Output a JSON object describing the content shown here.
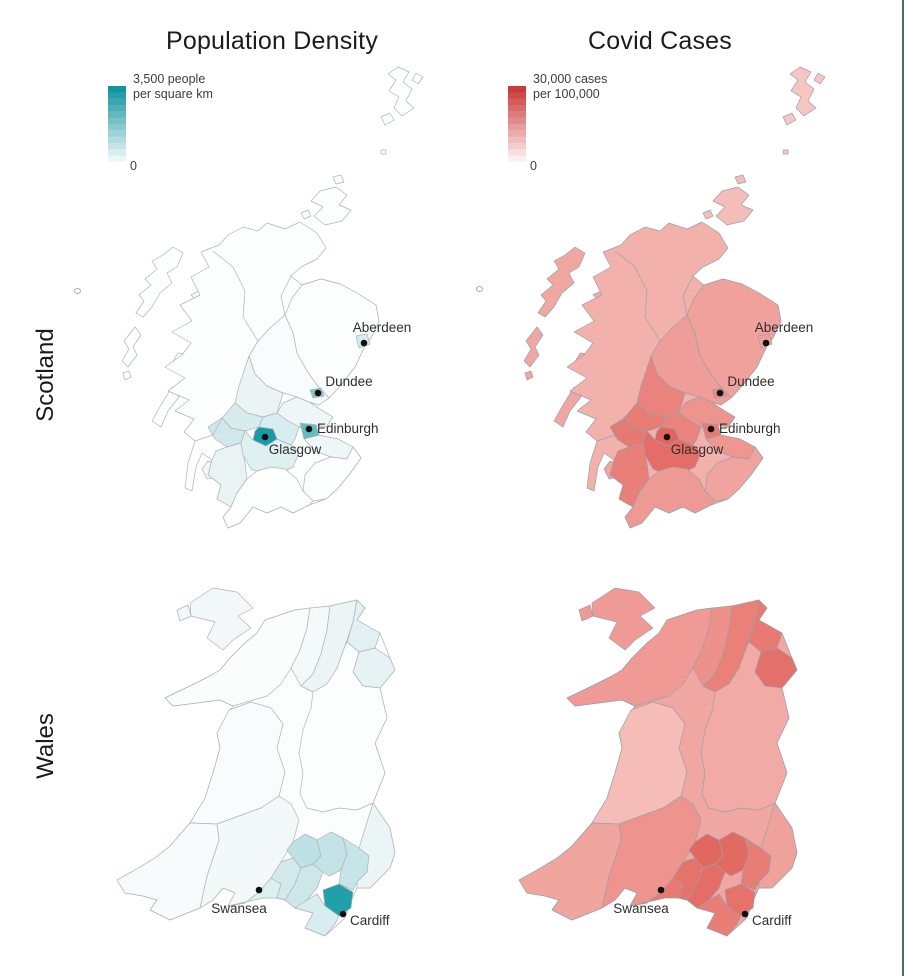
{
  "page": {
    "background": "#ffffff",
    "right_border_color": "#4b7155"
  },
  "columns": [
    {
      "id": "population_density",
      "title": "Population Density",
      "legend": {
        "max_line1": "3,500 people",
        "max_line2": "per square km",
        "min_label": "0",
        "high_color": "#14949e",
        "low_color": "#ffffff"
      }
    },
    {
      "id": "covid_cases",
      "title": "Covid Cases",
      "legend": {
        "max_line1": "30,000 cases",
        "max_line2": "per 100,000",
        "min_label": "0",
        "high_color": "#cb3a3a",
        "low_color": "#ffffff"
      }
    }
  ],
  "rows": [
    {
      "label": "Scotland"
    },
    {
      "label": "Wales"
    }
  ],
  "cities": {
    "scotland": [
      {
        "name": "Aberdeen"
      },
      {
        "name": "Dundee"
      },
      {
        "name": "Edinburgh"
      },
      {
        "name": "Glasgow"
      }
    ],
    "wales": [
      {
        "name": "Swansea"
      },
      {
        "name": "Cardiff"
      }
    ]
  },
  "map_style": {
    "border_color_density": "#aeb3b7",
    "border_color_covid": "#9aa0a8",
    "dot_color": "#101010",
    "label_color": "#2e2e2e"
  },
  "fills": {
    "population_density": {
      "scotland": {
        "base": "#fdfefe",
        "shetland": "#fdfefe",
        "orkney": "#fdfefe",
        "hebrides": "#fdfefe",
        "skye": "#fdfefe",
        "mull": "#fdfefe",
        "islay": "#fdfefe",
        "arran": "#f2f8f9",
        "grampian": "#fcfefe",
        "tayside": "#f9fcfc",
        "fife": "#eef6f7",
        "stirling_west": "#eaf4f5",
        "glasgow_belt_nw": "#d8ecee",
        "renfrew": "#cfe8eb",
        "ayrshire": "#e9f3f4",
        "lanark": "#dff0f1",
        "lothian_west": "#d8edef",
        "lothian_east": "#eef6f7",
        "borders": "#fdfefe",
        "dumfries": "#fdfefe",
        "aberdeen_city": "#d6ecef",
        "dundee_city": "#7fc7cd",
        "edinburgh_city": "#62bcc4",
        "glasgow_city": "#189ba4"
      },
      "wales": {
        "base": "#fcfefe",
        "anglesey": "#f2f8f9",
        "gwynedd": "#fbfdfd",
        "conwy": "#f4fafa",
        "denbighshire": "#ecf5f6",
        "flintshire": "#e1f0f2",
        "wrexham": "#e6f2f4",
        "powys": "#fcfefe",
        "ceredigion": "#f9fcfc",
        "pembrokeshire": "#f7fbfb",
        "carmarthenshire": "#f3f9f9",
        "swansea": "#dceff1",
        "neath": "#d2eaec",
        "bridgend": "#cbe7ea",
        "rhondda": "#bee1e5",
        "merthyr_caerphilly": "#c3e3e7",
        "cardiff": "#22a0a9",
        "vale": "#d8edef",
        "newport": "#c6e5e8",
        "monmouthshire": "#ebf5f6"
      }
    },
    "covid_cases": {
      "scotland": {
        "base": "#f3b1ac",
        "shetland": "#f7c6c2",
        "orkney": "#f5bdb9",
        "hebrides": "#f0a7a2",
        "skye": "#f2aba6",
        "mull": "#f0a7a2",
        "islay": "#f0a7a2",
        "arran": "#f0a5a0",
        "grampian": "#f0a19c",
        "tayside": "#ef9d98",
        "fife": "#ee948e",
        "stirling_west": "#ea837d",
        "glasgow_belt_nw": "#e87d76",
        "renfrew": "#e67972",
        "ayrshire": "#e97f79",
        "lanark": "#e46e67",
        "lothian_west": "#ea837d",
        "lothian_east": "#ee968f",
        "borders": "#f0a49f",
        "dumfries": "#ee9a94",
        "aberdeen_city": "#efa09b",
        "dundee_city": "#ec8b85",
        "edinburgh_city": "#e87a73",
        "glasgow_city": "#e2645e"
      },
      "wales": {
        "base": "#f0a6a1",
        "anglesey": "#ef9a94",
        "gwynedd": "#ef9a94",
        "conwy": "#ee918b",
        "denbighshire": "#e98179",
        "flintshire": "#e87a72",
        "wrexham": "#e4706a",
        "powys": "#f1aaa5",
        "ceredigion": "#f5bcb8",
        "pembrokeshire": "#f0a59f",
        "carmarthenshire": "#ee938d",
        "swansea": "#e87a73",
        "neath": "#e5736c",
        "bridgend": "#e46e67",
        "rhondda": "#e26760",
        "merthyr_caerphilly": "#e36a63",
        "cardiff": "#e5726b",
        "vale": "#e97e77",
        "newport": "#e87d76",
        "monmouthshire": "#efa19b"
      }
    }
  },
  "chart_data": {
    "type": "choropleth_map_grid",
    "facet_rows": [
      "Scotland",
      "Wales"
    ],
    "facet_cols": [
      "Population Density",
      "Covid Cases"
    ],
    "legends": [
      {
        "measure": "Population Density",
        "min": 0,
        "max": 3500,
        "unit": "people per square km",
        "scale": "white-to-teal"
      },
      {
        "measure": "Covid Cases",
        "min": 0,
        "max": 30000,
        "unit": "cases per 100,000",
        "scale": "white-to-red"
      }
    ],
    "city_markers": [
      "Aberdeen",
      "Dundee",
      "Edinburgh",
      "Glasgow",
      "Swansea",
      "Cardiff"
    ]
  }
}
